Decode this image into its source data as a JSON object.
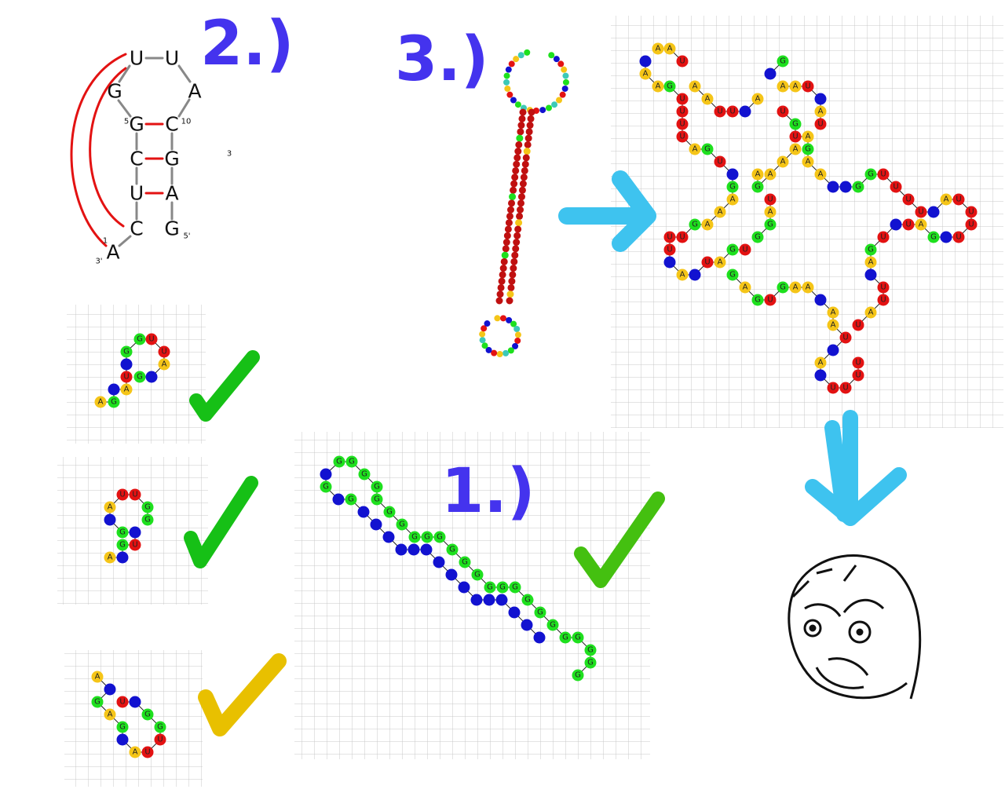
{
  "hairpin": {
    "nucleotides": [
      "U",
      "U",
      "A",
      "G",
      "G",
      "C",
      "C",
      "G",
      "U",
      "A",
      "C",
      "G",
      "A"
    ],
    "labels": [
      "5",
      "10",
      "1",
      "3'",
      "5'",
      "3"
    ]
  },
  "annotations": [
    "2.)",
    "3.)",
    "1.)"
  ],
  "colors": {
    "A": "#f5c518",
    "U": "#e31212",
    "G": "#1ee01e",
    "blank": "#1212d0"
  },
  "panels": {
    "small_1": {
      "nodes": [
        "A",
        "G",
        null,
        "A",
        "U",
        null,
        "G",
        "G",
        "U",
        "U",
        "A",
        null,
        "G"
      ]
    },
    "small_2": {
      "nodes": [
        "A",
        null,
        "G",
        "U",
        null,
        "G",
        null,
        "A",
        "U",
        "U",
        "G",
        "G"
      ]
    },
    "small_3": {
      "nodes": [
        "A",
        null,
        "G",
        "A",
        "G",
        null,
        "A",
        "U",
        "U",
        "G",
        "G",
        null,
        "U"
      ]
    },
    "middle": {
      "nodes": [
        null,
        null,
        null,
        null,
        null,
        null,
        null,
        null,
        null,
        null,
        null,
        null,
        null,
        null,
        null,
        "G",
        null,
        "G",
        null,
        "G",
        "G",
        "G",
        "G",
        "G",
        "G",
        "G",
        "G",
        "G",
        "G",
        "G",
        "G",
        "G",
        "G",
        "G",
        "G",
        "G",
        "G",
        "G",
        "G",
        "G",
        "G",
        "G",
        "G"
      ]
    },
    "right": {
      "nodes": [
        null,
        "A",
        "A",
        "G",
        "U",
        "U",
        "U",
        "U",
        "A",
        "G",
        "U",
        null,
        "G",
        "A",
        "A",
        "A",
        "G",
        "U",
        "U",
        "U",
        null,
        "A",
        null,
        "U",
        "A",
        "G",
        "U",
        "G",
        "A",
        "G",
        "U",
        "G",
        "A",
        "A",
        null,
        "A",
        "A",
        "U",
        null,
        "A",
        null,
        "U",
        "U",
        "U",
        "U",
        "U",
        "A",
        "U",
        "U",
        null,
        "A",
        "G",
        "U",
        null,
        "U",
        "A",
        "G",
        null,
        "U",
        "U",
        "U",
        "U",
        "A",
        null,
        "U",
        "U",
        "U",
        "U",
        "G",
        "G",
        null,
        null,
        "A",
        "A",
        "G",
        "A",
        "U",
        "G",
        "U",
        "A",
        "A",
        "U",
        null,
        "A",
        "U",
        null,
        "G",
        "A",
        null,
        "U",
        "U",
        "A",
        "A",
        "A",
        "A",
        "A",
        "G",
        "A",
        "U",
        "A",
        "G",
        "G",
        "A",
        "A",
        "U"
      ]
    }
  }
}
